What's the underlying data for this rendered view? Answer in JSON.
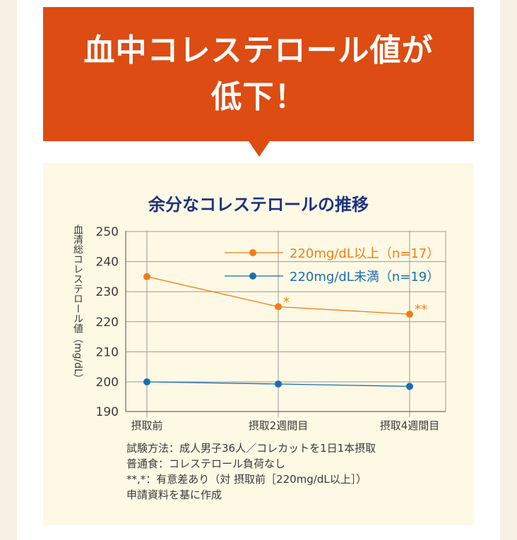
{
  "header": {
    "line1": "血中コレステロール値が",
    "line2": "低下！"
  },
  "colors": {
    "banner": "#dd4c12",
    "panel": "#fdf9e4",
    "title": "#1d3380",
    "series_high": "#f07d14",
    "series_low": "#1a6db4"
  },
  "chart_data": {
    "type": "line",
    "title": "余分なコレステロールの推移",
    "ylabel": "血清総コレステロール値（mg/dL）",
    "xlabel": "",
    "categories": [
      "摂取前",
      "摂取2週間目",
      "摂取4週間目"
    ],
    "ylim": [
      190,
      250
    ],
    "yticks": [
      190,
      200,
      210,
      220,
      230,
      240,
      250
    ],
    "grid": true,
    "legend_position": "top-right",
    "series": [
      {
        "name": "220mg/dL以上（n=17）",
        "color": "#f07d14",
        "values": [
          235,
          225,
          222.5
        ],
        "markers": [
          "",
          "*",
          "**"
        ]
      },
      {
        "name": "220mg/dL未満（n=19）",
        "color": "#1a6db4",
        "values": [
          200,
          199.3,
          198.5
        ],
        "markers": [
          "",
          "",
          ""
        ]
      }
    ]
  },
  "notes": [
    "試験方法：成人男子36人／コレカットを1日1本摂取",
    "普通食：コレステロール負荷なし",
    "**,*：有意差あり（対 摂取前［220mg/dL以上］）",
    "申請資料を基に作成"
  ]
}
